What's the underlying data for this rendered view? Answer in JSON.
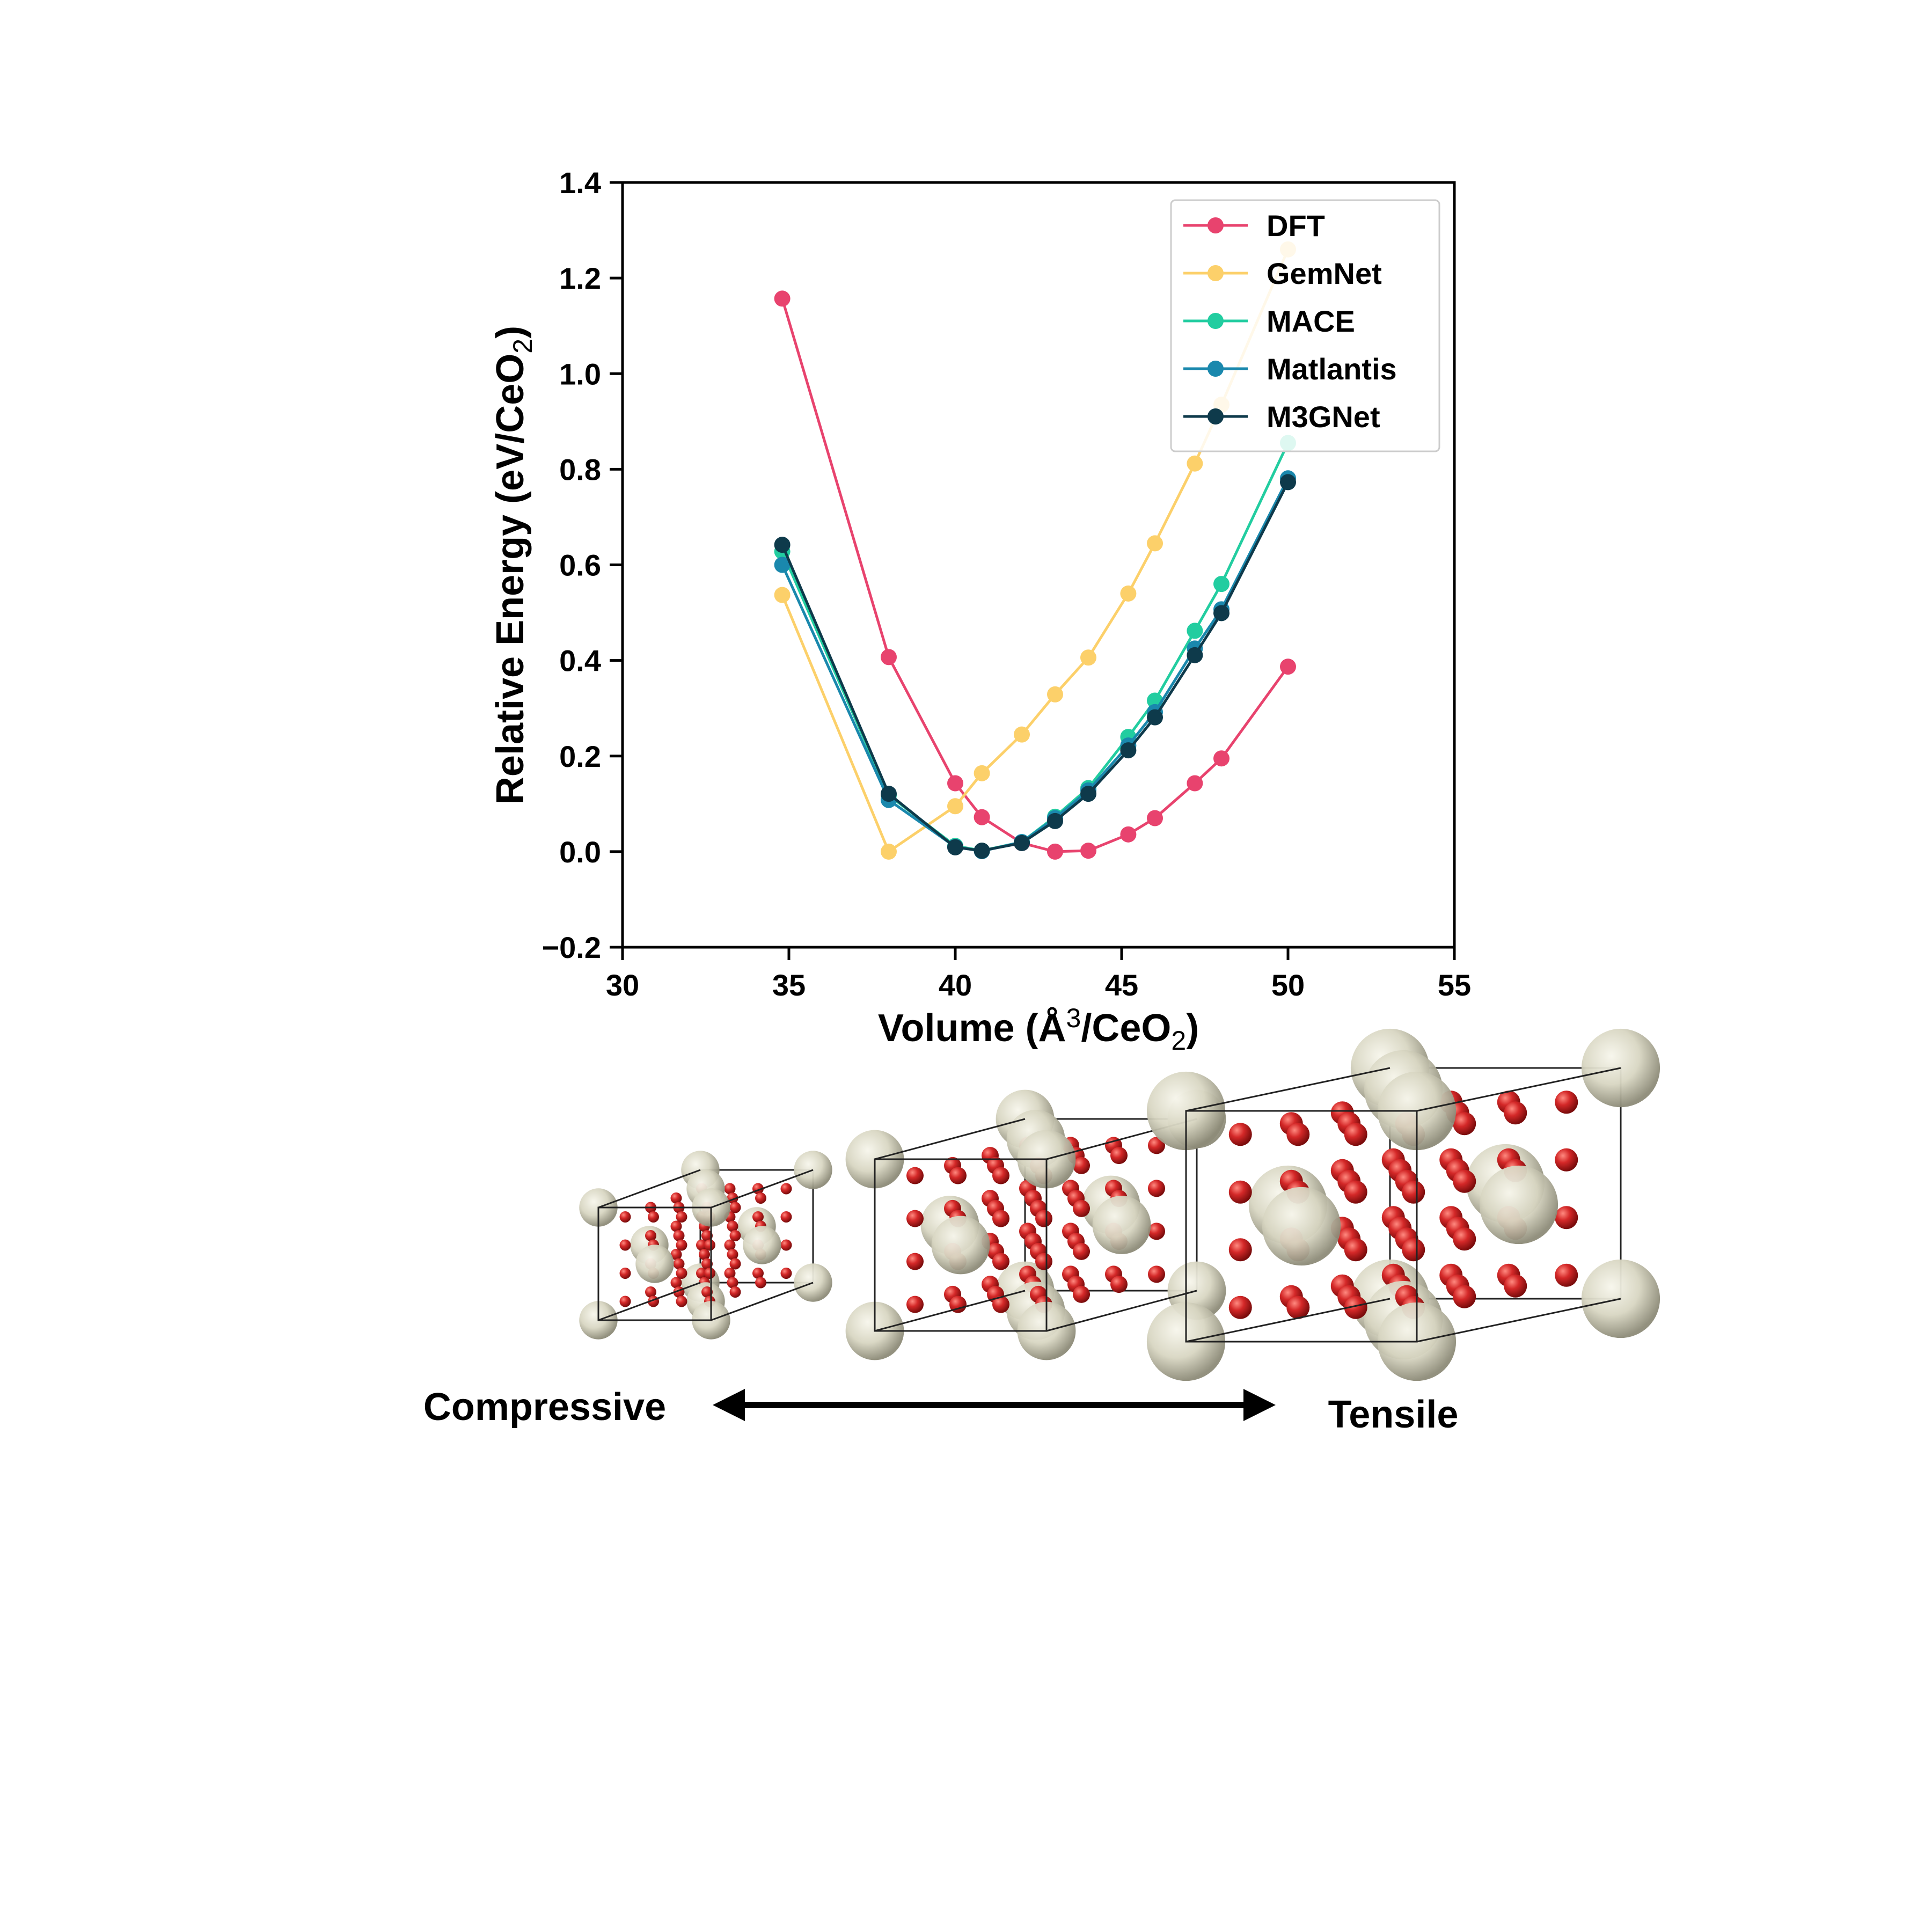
{
  "chart_data": {
    "type": "line",
    "xlabel": "Volume (Å³/CeO₂)",
    "xlabel_parts": {
      "pre": "Volume (Å",
      "sup": "3",
      "mid": "/CeO",
      "sub": "2",
      "post": ")"
    },
    "ylabel": "Relative Energy (eV/CeO₂)",
    "ylabel_parts": {
      "pre": "Relative Energy (eV/CeO",
      "sub": "2",
      "post": ")"
    },
    "xlim": [
      30,
      55
    ],
    "ylim": [
      -0.2,
      1.4
    ],
    "xticks": [
      30,
      35,
      40,
      45,
      50,
      55
    ],
    "yticks": [
      -0.2,
      0.0,
      0.2,
      0.4,
      0.6,
      0.8,
      1.0,
      1.2,
      1.4
    ],
    "xtick_labels": [
      "30",
      "35",
      "40",
      "45",
      "50",
      "55"
    ],
    "ytick_labels": [
      "−0.2",
      "0.0",
      "0.2",
      "0.4",
      "0.6",
      "0.8",
      "1.0",
      "1.2",
      "1.4"
    ],
    "grid": false,
    "legend_position": "top-right",
    "series": [
      {
        "name": "DFT",
        "color": "#e8436e",
        "x": [
          34.8,
          38.0,
          40.0,
          40.8,
          42.0,
          43.0,
          44.0,
          45.2,
          46.0,
          47.2,
          48.0,
          50.0
        ],
        "y": [
          1.157,
          0.407,
          0.143,
          0.072,
          0.018,
          0.0,
          0.002,
          0.036,
          0.07,
          0.143,
          0.195,
          0.387
        ]
      },
      {
        "name": "GemNet",
        "color": "#fcd06a",
        "x": [
          34.8,
          38.0,
          40.0,
          40.8,
          42.0,
          43.0,
          44.0,
          45.2,
          46.0,
          47.2,
          48.0,
          50.0
        ],
        "y": [
          0.537,
          0.0,
          0.095,
          0.164,
          0.245,
          0.329,
          0.406,
          0.54,
          0.645,
          0.812,
          0.935,
          1.26
        ]
      },
      {
        "name": "MACE",
        "color": "#22cda0",
        "x": [
          34.8,
          38.0,
          40.0,
          40.8,
          42.0,
          43.0,
          44.0,
          45.2,
          46.0,
          47.2,
          48.0,
          50.0
        ],
        "y": [
          0.628,
          0.118,
          0.012,
          0.002,
          0.02,
          0.073,
          0.133,
          0.24,
          0.316,
          0.462,
          0.56,
          0.855
        ]
      },
      {
        "name": "Matlantis",
        "color": "#1a88ad",
        "x": [
          34.8,
          38.0,
          40.0,
          40.8,
          42.0,
          43.0,
          44.0,
          45.2,
          46.0,
          47.2,
          48.0,
          50.0
        ],
        "y": [
          0.6,
          0.108,
          0.01,
          0.001,
          0.02,
          0.07,
          0.128,
          0.222,
          0.292,
          0.425,
          0.507,
          0.781
        ]
      },
      {
        "name": "M3GNet",
        "color": "#0e3a4b",
        "x": [
          34.8,
          38.0,
          40.0,
          40.8,
          42.0,
          43.0,
          44.0,
          45.2,
          46.0,
          47.2,
          48.0,
          50.0
        ],
        "y": [
          0.642,
          0.121,
          0.009,
          0.002,
          0.018,
          0.064,
          0.121,
          0.212,
          0.281,
          0.411,
          0.499,
          0.773
        ]
      }
    ]
  },
  "illustration": {
    "left_label": "Compressive",
    "right_label": "Tensile",
    "colors": {
      "oxygen": "#d42828",
      "cerium": "#d8d6c2",
      "arrow": "#000000",
      "cell_edge": "#222222"
    }
  }
}
